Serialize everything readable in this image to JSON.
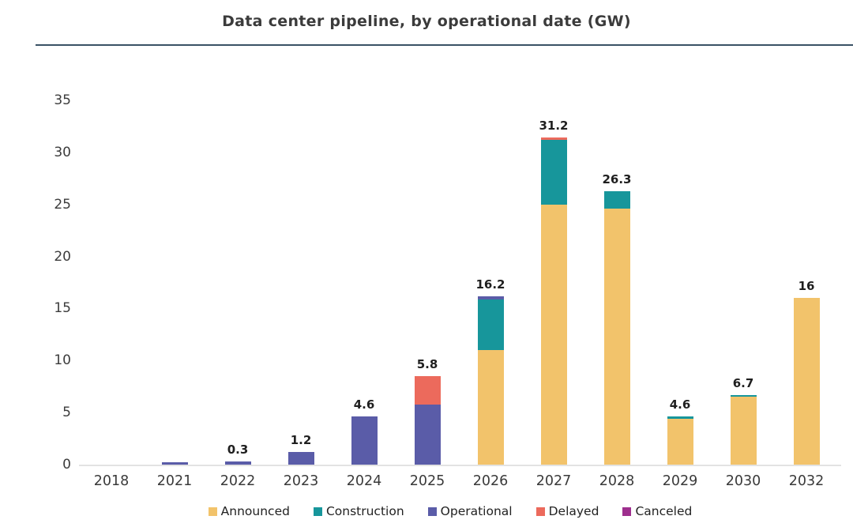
{
  "header": {
    "title": "Data center pipeline, by operational date (GW)"
  },
  "colors": {
    "announced": "#F2C36B",
    "construction": "#17969B",
    "operational": "#5A5CA8",
    "delayed": "#EC6A5C",
    "canceled": "#9E2F8E",
    "title_text": "#3B3B3B",
    "title_rule": "#3A5265",
    "axis_text": "#3C3C3C",
    "baseline": "#E3E3E3"
  },
  "chart_data": {
    "type": "bar",
    "stacked": true,
    "title": "Data center pipeline, by operational date (GW)",
    "unit": "GW",
    "xlabel": "",
    "ylabel": "",
    "ylim": [
      0,
      35
    ],
    "yticks": [
      0,
      5,
      10,
      15,
      20,
      25,
      30,
      35
    ],
    "grid": false,
    "legend_position": "bottom",
    "series_order": [
      "announced",
      "construction",
      "operational",
      "delayed",
      "canceled"
    ],
    "legend": [
      {
        "key": "announced",
        "label": "Announced",
        "color": "#F2C36B"
      },
      {
        "key": "construction",
        "label": "Construction",
        "color": "#17969B"
      },
      {
        "key": "operational",
        "label": "Operational",
        "color": "#5A5CA8"
      },
      {
        "key": "delayed",
        "label": "Delayed",
        "color": "#EC6A5C"
      },
      {
        "key": "canceled",
        "label": "Canceled",
        "color": "#9E2F8E"
      }
    ],
    "categories": [
      "2018",
      "2021",
      "2022",
      "2023",
      "2024",
      "2025",
      "2026",
      "2027",
      "2028",
      "2029",
      "2030",
      "2032"
    ],
    "bars": [
      {
        "category": "2018",
        "total_label": "",
        "segments": {}
      },
      {
        "category": "2021",
        "total_label": "",
        "segments": {
          "operational": 0.2
        }
      },
      {
        "category": "2022",
        "total_label": "0.3",
        "segments": {
          "operational": 0.3
        }
      },
      {
        "category": "2023",
        "total_label": "1.2",
        "segments": {
          "operational": 1.2
        }
      },
      {
        "category": "2024",
        "total_label": "4.6",
        "segments": {
          "operational": 4.6
        }
      },
      {
        "category": "2025",
        "total_label": "5.8",
        "segments": {
          "operational": 5.8,
          "delayed": 2.7
        }
      },
      {
        "category": "2026",
        "total_label": "16.2",
        "segments": {
          "announced": 11.0,
          "construction": 4.9,
          "operational": 0.3
        }
      },
      {
        "category": "2027",
        "total_label": "31.2",
        "segments": {
          "announced": 25.0,
          "construction": 6.2,
          "delayed": 0.2
        }
      },
      {
        "category": "2028",
        "total_label": "26.3",
        "segments": {
          "announced": 24.6,
          "construction": 1.7
        }
      },
      {
        "category": "2029",
        "total_label": "4.6",
        "segments": {
          "announced": 4.4,
          "construction": 0.2
        }
      },
      {
        "category": "2030",
        "total_label": "6.7",
        "segments": {
          "announced": 6.5,
          "construction": 0.2
        }
      },
      {
        "category": "2032",
        "total_label": "16",
        "segments": {
          "announced": 16.0
        }
      }
    ]
  }
}
